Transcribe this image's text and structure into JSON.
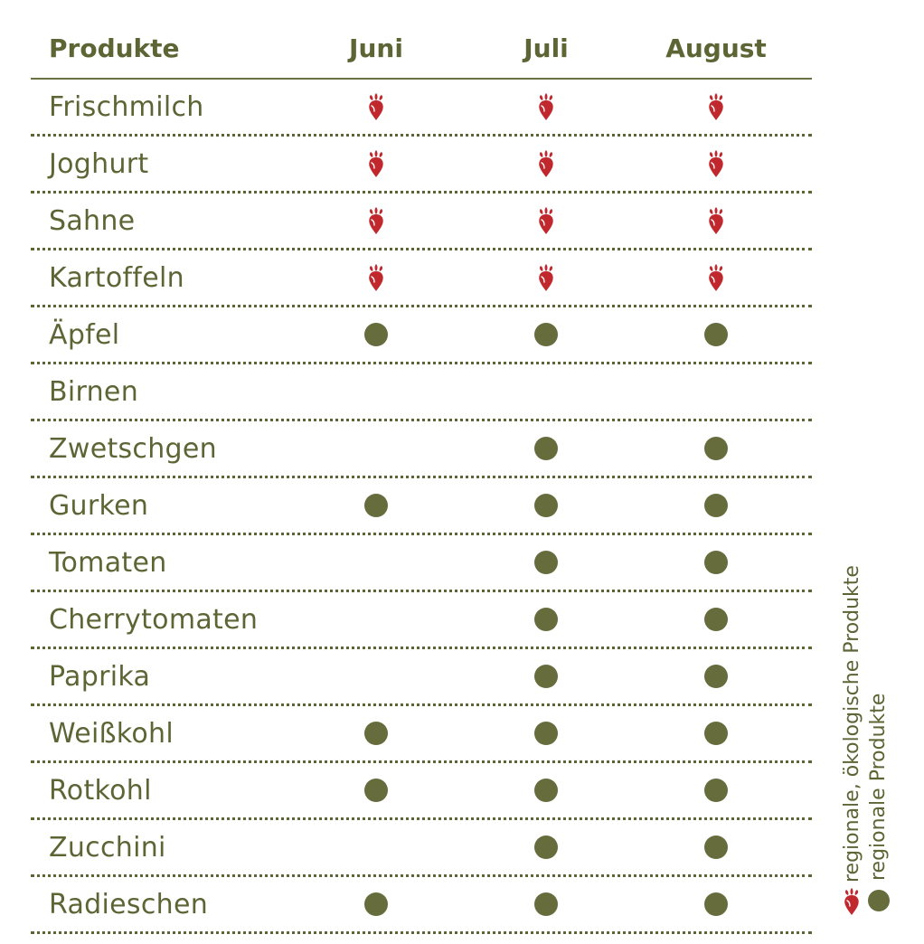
{
  "table": {
    "header": {
      "product": "Produkte",
      "months": [
        "Juni",
        "Juli",
        "August"
      ]
    },
    "rows": [
      {
        "name": "Frischmilch",
        "marks": [
          "eco",
          "eco",
          "eco"
        ]
      },
      {
        "name": "Joghurt",
        "marks": [
          "eco",
          "eco",
          "eco"
        ]
      },
      {
        "name": "Sahne",
        "marks": [
          "eco",
          "eco",
          "eco"
        ]
      },
      {
        "name": "Kartoffeln",
        "marks": [
          "eco",
          "eco",
          "eco"
        ]
      },
      {
        "name": "Äpfel",
        "marks": [
          "regional",
          "regional",
          "regional"
        ]
      },
      {
        "name": "Birnen",
        "marks": [
          "",
          "",
          ""
        ]
      },
      {
        "name": "Zwetschgen",
        "marks": [
          "",
          "regional",
          "regional"
        ]
      },
      {
        "name": "Gurken",
        "marks": [
          "regional",
          "regional",
          "regional"
        ]
      },
      {
        "name": "Tomaten",
        "marks": [
          "",
          "regional",
          "regional"
        ]
      },
      {
        "name": "Cherrytomaten",
        "marks": [
          "",
          "regional",
          "regional"
        ]
      },
      {
        "name": "Paprika",
        "marks": [
          "",
          "regional",
          "regional"
        ]
      },
      {
        "name": "Weißkohl",
        "marks": [
          "regional",
          "regional",
          "regional"
        ]
      },
      {
        "name": "Rotkohl",
        "marks": [
          "regional",
          "regional",
          "regional"
        ]
      },
      {
        "name": "Zucchini",
        "marks": [
          "",
          "regional",
          "regional"
        ]
      },
      {
        "name": "Radieschen",
        "marks": [
          "regional",
          "regional",
          "regional"
        ]
      }
    ]
  },
  "legend": {
    "eco": {
      "label": "regionale, ökologische Produkte",
      "icon": "beet-icon"
    },
    "regional": {
      "label": "regionale Produkte",
      "icon": "dot-icon"
    }
  },
  "colors": {
    "text": "#5e6535",
    "dot": "#666c3c",
    "beet": "#c0282d"
  }
}
